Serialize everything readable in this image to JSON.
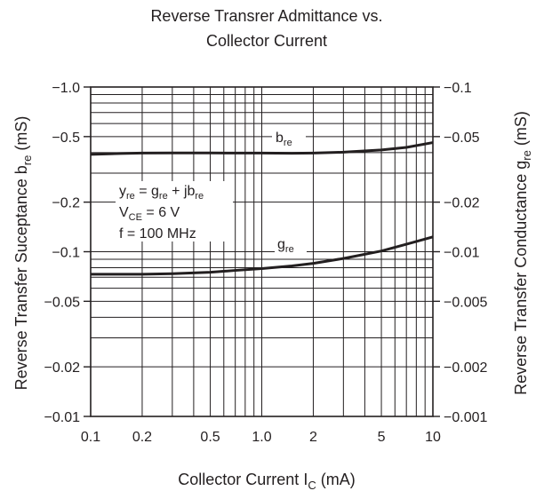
{
  "chart_data": {
    "type": "line",
    "title_line1": "Reverse Transrer Admittance vs.",
    "title_line2": "Collector Current",
    "x_axis": {
      "label_main": "Collector Current  I",
      "label_sub": "C",
      "label_unit": "  (mA)",
      "scale": "log",
      "range": [
        0.1,
        10
      ],
      "tick_values": [
        0.1,
        0.2,
        0.5,
        1.0,
        2,
        5,
        10
      ],
      "tick_labels": [
        "0.1",
        "0.2",
        "0.5",
        "1.0",
        "2",
        "5",
        "10"
      ]
    },
    "y_left": {
      "label_main": "Reverse Transfer Suceptance  b",
      "label_sub": "re",
      "label_unit": "  (mS)",
      "scale": "log",
      "range": [
        -0.01,
        -1.0
      ],
      "tick_values": [
        -1.0,
        -0.5,
        -0.2,
        -0.1,
        -0.05,
        -0.02,
        -0.01
      ],
      "tick_labels": [
        "−1.0",
        "−0.5",
        "−0.2",
        "−0.1",
        "−0.05",
        "−0.02",
        "−0.01"
      ]
    },
    "y_right": {
      "label_main": "Reverse Transfer Conductance  g",
      "label_sub": "re",
      "label_unit": "  (mS)",
      "scale": "log",
      "range": [
        -0.001,
        -0.1
      ],
      "tick_values": [
        -0.1,
        -0.05,
        -0.02,
        -0.01,
        -0.005,
        -0.002,
        -0.001
      ],
      "tick_labels": [
        "−0.1",
        "−0.05",
        "−0.02",
        "−0.01",
        "−0.005",
        "−0.002",
        "−0.001"
      ]
    },
    "annotation": {
      "line1_a": "y",
      "line1_a_sub": "re",
      "line1_b": " = g",
      "line1_b_sub": "re",
      "line1_c": " + jb",
      "line1_c_sub": "re",
      "line2_a": "V",
      "line2_a_sub": "CE",
      "line2_b": " = 6 V",
      "line3": "f = 100 MHz"
    },
    "grid": true,
    "series": [
      {
        "label_main": "b",
        "label_sub": "re",
        "axis": "left",
        "x": [
          0.1,
          0.15,
          0.2,
          0.3,
          0.5,
          0.7,
          1.0,
          1.5,
          2,
          3,
          5,
          7,
          10
        ],
        "y": [
          -0.39,
          -0.395,
          -0.397,
          -0.398,
          -0.398,
          -0.397,
          -0.397,
          -0.396,
          -0.397,
          -0.402,
          -0.415,
          -0.43,
          -0.46
        ]
      },
      {
        "label_main": "g",
        "label_sub": "re",
        "axis": "right",
        "x": [
          0.1,
          0.15,
          0.2,
          0.3,
          0.5,
          0.7,
          1.0,
          1.5,
          2,
          3,
          5,
          7,
          10
        ],
        "y": [
          -0.0073,
          -0.0073,
          -0.0073,
          -0.00735,
          -0.0075,
          -0.0077,
          -0.0079,
          -0.0082,
          -0.0085,
          -0.0091,
          -0.0101,
          -0.0111,
          -0.0123
        ]
      }
    ]
  }
}
